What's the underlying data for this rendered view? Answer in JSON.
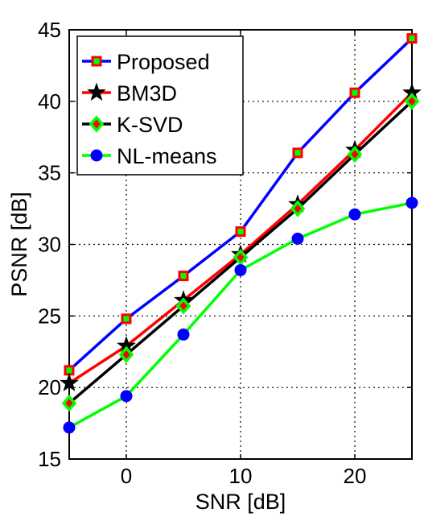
{
  "chart_data": {
    "type": "line",
    "xlabel": "SNR [dB]",
    "ylabel": "PSNR [dB]",
    "xlim": [
      -5,
      25
    ],
    "ylim": [
      15,
      45
    ],
    "xticks": [
      0,
      10,
      20
    ],
    "yticks": [
      15,
      20,
      25,
      30,
      35,
      40,
      45
    ],
    "grid": true,
    "legend_position": "top-left",
    "x": [
      -5,
      0,
      5,
      10,
      15,
      20,
      25
    ],
    "series": [
      {
        "name": "Proposed",
        "line_color": "#0000ff",
        "marker": "square",
        "marker_edge": "#ff0000",
        "marker_face": "#00ff00",
        "values": [
          21.2,
          24.8,
          27.8,
          30.9,
          36.4,
          40.6,
          44.4
        ]
      },
      {
        "name": "BM3D",
        "line_color": "#ff0000",
        "marker": "star",
        "marker_edge": "#000000",
        "marker_face": "#000000",
        "values": [
          20.3,
          22.9,
          26.1,
          29.3,
          32.8,
          36.6,
          40.6
        ]
      },
      {
        "name": "K-SVD",
        "line_color": "#000000",
        "marker": "diamond",
        "marker_edge": "#00ff00",
        "marker_face": "#ff0000",
        "values": [
          18.9,
          22.3,
          25.7,
          29.1,
          32.5,
          36.3,
          40.0
        ]
      },
      {
        "name": "NL-means",
        "line_color": "#00ff00",
        "marker": "circle",
        "marker_edge": "#0000ff",
        "marker_face": "#0000ff",
        "values": [
          17.2,
          19.4,
          23.7,
          28.2,
          30.4,
          32.1,
          32.9
        ]
      }
    ]
  }
}
